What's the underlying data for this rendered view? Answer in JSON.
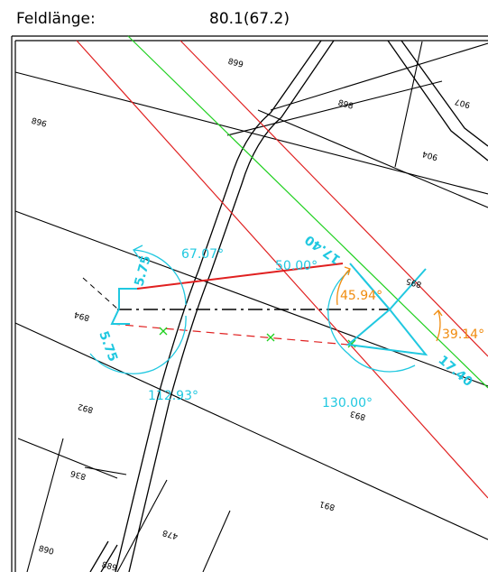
{
  "header": {
    "label": "Feldlänge:",
    "value": "80.1(67.2)"
  },
  "parcels": [
    {
      "id": "p899",
      "text": "899"
    },
    {
      "id": "p898",
      "text": "898"
    },
    {
      "id": "p907",
      "text": "907"
    },
    {
      "id": "p896",
      "text": "896"
    },
    {
      "id": "p904",
      "text": "904"
    },
    {
      "id": "p894",
      "text": "894"
    },
    {
      "id": "p895",
      "text": "895"
    },
    {
      "id": "p892",
      "text": "892"
    },
    {
      "id": "p893",
      "text": "893"
    },
    {
      "id": "p836",
      "text": "836"
    },
    {
      "id": "p891",
      "text": "891"
    },
    {
      "id": "p478",
      "text": "478"
    },
    {
      "id": "p890",
      "text": "890"
    },
    {
      "id": "p889",
      "text": "889"
    }
  ],
  "dimensions": {
    "left_top": "5.75",
    "left_bottom": "5.75",
    "right_top": "17.40",
    "right_bottom": "17.40"
  },
  "angles": {
    "a1": "67.07°",
    "a2": "50.00°",
    "a3": "45.94°",
    "a4": "39.14°",
    "a5": "112.93°",
    "a6": "130.00°"
  },
  "colors": {
    "red": "#e02020",
    "green": "#20d020",
    "cyan": "#20c8e0",
    "orange": "#f08c10",
    "black": "#000000"
  }
}
